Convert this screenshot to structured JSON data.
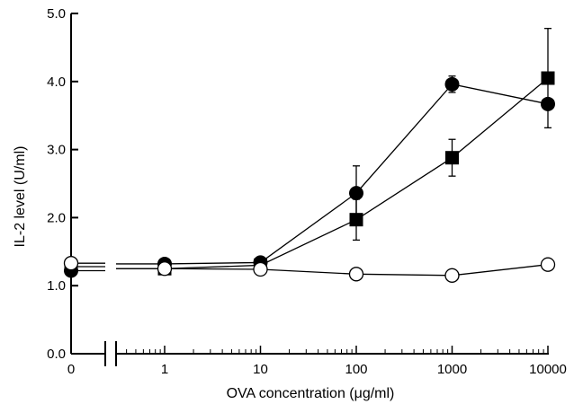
{
  "chart_data": {
    "type": "line",
    "xlabel": "OVA concentration (μg/ml)",
    "ylabel": "IL-2 level (U/ml)",
    "x_scale": "log with broken axis at 0",
    "x_ticks": [
      0,
      1,
      10,
      100,
      1000,
      10000
    ],
    "x_tick_labels": [
      "0",
      "1",
      "10",
      "100",
      "1000",
      "10000"
    ],
    "ylim": [
      0,
      5
    ],
    "y_ticks": [
      0,
      1,
      2,
      3,
      4,
      5
    ],
    "y_tick_labels": [
      "0.0",
      "1.0",
      "2.0",
      "3.0",
      "4.0",
      "5.0"
    ],
    "grid": false,
    "legend": "none",
    "series": [
      {
        "marker": "filled-circle",
        "x": [
          0,
          1,
          10,
          100,
          1000,
          10000
        ],
        "y": [
          1.22,
          1.32,
          1.34,
          2.36,
          3.96,
          3.67
        ],
        "err": [
          0.05,
          0.04,
          0.04,
          0.4,
          0.12,
          0.0
        ]
      },
      {
        "marker": "filled-square",
        "x": [
          0,
          1,
          10,
          100,
          1000,
          10000
        ],
        "y": [
          1.28,
          1.25,
          1.3,
          1.97,
          2.88,
          4.05
        ],
        "err": [
          0.04,
          0.03,
          0.03,
          0.3,
          0.27,
          0.73
        ]
      },
      {
        "marker": "open-circle",
        "x": [
          0,
          1,
          10,
          100,
          1000,
          10000
        ],
        "y": [
          1.33,
          1.25,
          1.24,
          1.17,
          1.15,
          1.31
        ],
        "err": [
          0,
          0,
          0,
          0,
          0,
          0
        ]
      }
    ]
  }
}
